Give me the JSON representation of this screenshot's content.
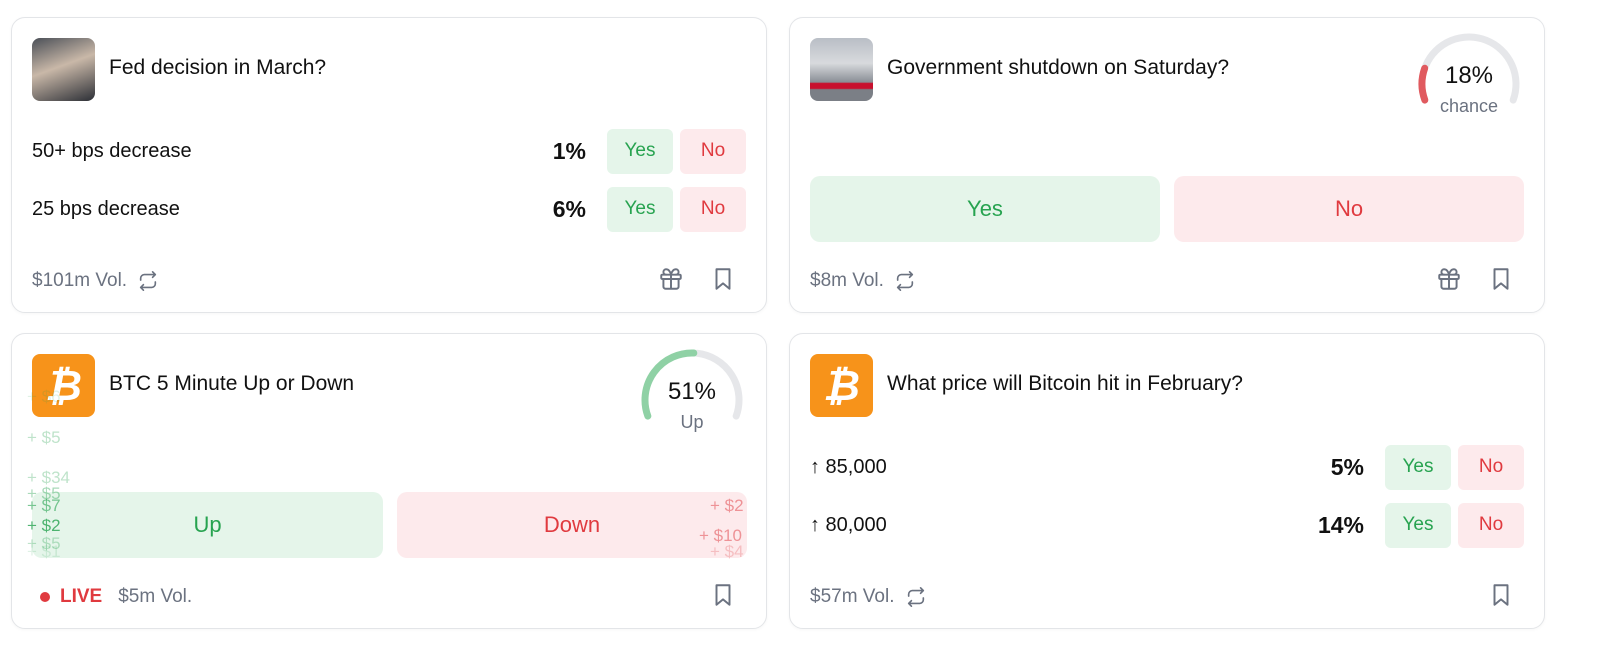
{
  "colors": {
    "yes": "#27a350",
    "no": "#e03a3f",
    "yes_bg": "#e5f5ea",
    "no_bg": "#fdeaec",
    "bitcoin": "#f7931a",
    "live": "#e03a3f"
  },
  "cards": [
    {
      "title": "Fed decision in March?",
      "thumb": "fed-chair-photo",
      "outcomes": [
        {
          "label": "50+ bps decrease",
          "pct": "1%",
          "yes": "Yes",
          "no": "No"
        },
        {
          "label": "25 bps decrease",
          "pct": "6%",
          "yes": "Yes",
          "no": "No"
        }
      ],
      "volume": "$101m Vol."
    },
    {
      "title": "Government shutdown on Saturday?",
      "thumb": "capitol-closed-photo",
      "gauge": {
        "value": "18%",
        "label": "chance",
        "fraction": 0.18,
        "color": "#e05a5f"
      },
      "yes": "Yes",
      "no": "No",
      "volume": "$8m Vol."
    },
    {
      "title": "BTC 5 Minute Up or Down",
      "thumb": "bitcoin-logo",
      "gauge": {
        "value": "51%",
        "label": "Up",
        "fraction": 0.51,
        "color": "#8fd1a5"
      },
      "up": "Up",
      "down": "Down",
      "live": "LIVE",
      "volume": "$5m Vol.",
      "floats_up": [
        "+ $6",
        "+ $5",
        "+ $34",
        "+ $5",
        "+ $7",
        "+ $2",
        "+ $5",
        "+ $1"
      ],
      "floats_down": [
        "+ $2",
        "+ $10",
        "+ $4"
      ]
    },
    {
      "title": "What price will Bitcoin hit in February?",
      "thumb": "bitcoin-logo",
      "outcomes": [
        {
          "label": "↑ 85,000",
          "pct": "5%",
          "yes": "Yes",
          "no": "No"
        },
        {
          "label": "↑ 80,000",
          "pct": "14%",
          "yes": "Yes",
          "no": "No"
        }
      ],
      "volume": "$57m Vol."
    }
  ],
  "icons": {
    "bitcoin": "₿"
  }
}
